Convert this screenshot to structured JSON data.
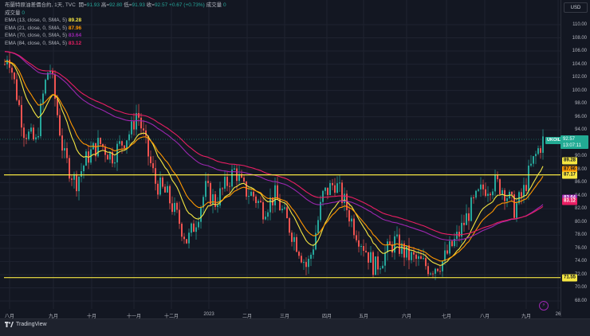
{
  "header": {
    "symbol_title": "布蘭特原油差價合約, 1天, TVC",
    "ohlc": [
      {
        "label": "開",
        "value": "91.93"
      },
      {
        "label": "高",
        "value": "92.80"
      },
      {
        "label": "低",
        "value": "91.93"
      },
      {
        "label": "收",
        "value": "92.57"
      }
    ],
    "change": "+0.67 (+0.73%)",
    "volume_label": "成交量",
    "volume_value": "0"
  },
  "legend": {
    "volume_row_label": "成交量",
    "volume_row_value": "0",
    "indicators": [
      {
        "label": "EMA (13, close, 0, SMA, 5)",
        "value": "89.28",
        "color": "#f5e642"
      },
      {
        "label": "EMA (21, close, 0, SMA, 5)",
        "value": "87.96",
        "color": "#ff9800"
      },
      {
        "label": "EMA (70, close, 0, SMA, 5)",
        "value": "83.64",
        "color": "#9c27b0"
      },
      {
        "label": "EMA (84, close, 0, SMA, 5)",
        "value": "83.12",
        "color": "#e91e63"
      }
    ]
  },
  "price_axis": {
    "currency_button": "USD",
    "ticks": [
      "110.00",
      "108.00",
      "106.00",
      "104.00",
      "102.00",
      "100.00",
      "98.00",
      "96.00",
      "94.00",
      "92.00",
      "90.00",
      "88.00",
      "86.00",
      "84.00",
      "82.00",
      "80.00",
      "78.00",
      "76.00",
      "74.00",
      "72.00",
      "70.00",
      "68.00"
    ],
    "last_price_symbol": "UKOIL",
    "last_price": "92.57",
    "countdown": "13:07:11",
    "tags": [
      {
        "value": "89.28",
        "color": "#f5e642",
        "text_color": "#131722"
      },
      {
        "value": "87.96",
        "color": "#ff9800",
        "text_color": "#131722"
      },
      {
        "value": "87.17",
        "color": "#f5e642",
        "text_color": "#131722"
      },
      {
        "value": "83.64",
        "color": "#9c27b0",
        "text_color": "#ffffff"
      },
      {
        "value": "83.12",
        "color": "#e91e63",
        "text_color": "#ffffff"
      },
      {
        "value": "71.55",
        "color": "#f5e642",
        "text_color": "#131722"
      }
    ]
  },
  "time_axis": {
    "ticks": [
      "八月",
      "九月",
      "十月",
      "十一月",
      "十二月",
      "2023",
      "二月",
      "三月",
      "四月",
      "五月",
      "六月",
      "七月",
      "八月",
      "九月",
      "26"
    ]
  },
  "footer": {
    "brand": "TradingView"
  },
  "colors": {
    "background": "#131722",
    "grid": "#1f2330",
    "up": "#26a69a",
    "down": "#ef5350",
    "horizontal_level": "#f5e642"
  },
  "chart_data": {
    "type": "candlestick",
    "title": "布蘭特原油差價合約 (UKOIL), 1天, TVC",
    "xlabel": "",
    "ylabel": "USD",
    "ylim": [
      67,
      112
    ],
    "grid": true,
    "legend_position": "top-left",
    "x_ticks": [
      "八月",
      "九月",
      "十月",
      "十一月",
      "十二月",
      "2023",
      "二月",
      "三月",
      "四月",
      "五月",
      "六月",
      "七月",
      "八月",
      "九月",
      "26"
    ],
    "last": {
      "open": 91.93,
      "high": 92.8,
      "low": 91.93,
      "close": 92.57,
      "change": 0.67,
      "change_pct": 0.73
    },
    "horizontal_levels": [
      87.17,
      71.55
    ],
    "close_path_monthly": [
      {
        "month": "2022-08",
        "close": 105.0
      },
      {
        "month": "2022-09",
        "close": 88.0
      },
      {
        "month": "2022-10",
        "close": 94.0
      },
      {
        "month": "2022-11",
        "close": 85.5
      },
      {
        "month": "2022-12",
        "close": 83.0
      },
      {
        "month": "2023-01",
        "close": 84.5
      },
      {
        "month": "2023-02",
        "close": 83.5
      },
      {
        "month": "2023-03",
        "close": 79.5
      },
      {
        "month": "2023-04",
        "close": 79.5
      },
      {
        "month": "2023-05",
        "close": 72.5
      },
      {
        "month": "2023-06",
        "close": 75.0
      },
      {
        "month": "2023-07",
        "close": 85.5
      },
      {
        "month": "2023-08",
        "close": 86.5
      },
      {
        "month": "2023-09",
        "close": 92.57
      }
    ],
    "series": [
      {
        "name": "EMA 13",
        "last": 89.28,
        "color": "#f5e642"
      },
      {
        "name": "EMA 21",
        "last": 87.96,
        "color": "#ff9800"
      },
      {
        "name": "EMA 70",
        "last": 83.64,
        "color": "#9c27b0"
      },
      {
        "name": "EMA 84",
        "last": 83.12,
        "color": "#e91e63"
      }
    ]
  }
}
